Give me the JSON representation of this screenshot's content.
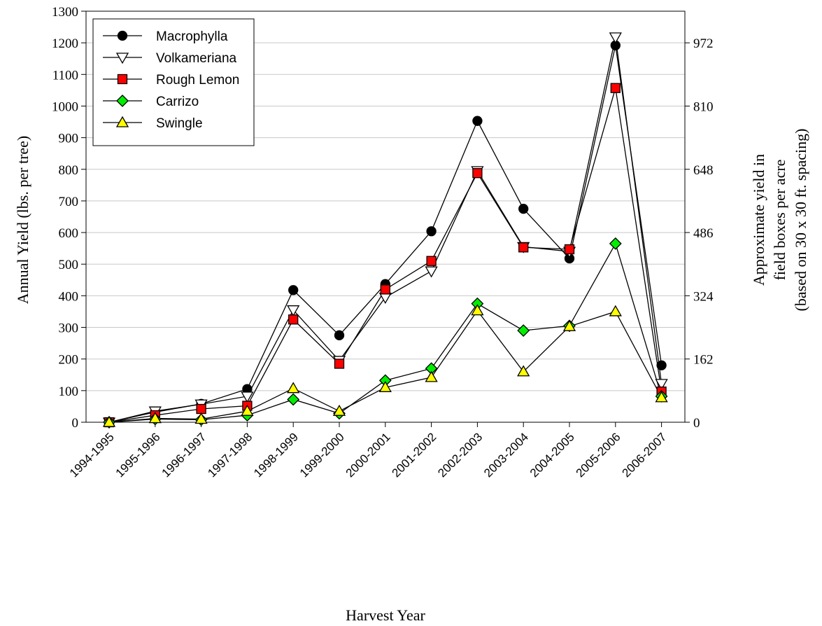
{
  "chart_data": {
    "type": "line",
    "title": "",
    "xlabel": "Harvest Year",
    "ylabel": "Annual Yield (lbs. per tree)",
    "y2label": [
      "Approximate yield in",
      "field boxes per acre",
      "(based on 30 x 30 ft. spacing)"
    ],
    "categories": [
      "1994-1995",
      "1995-1996",
      "1996-1997",
      "1997-1998",
      "1998-1999",
      "1999-2000",
      "2000-2001",
      "2001-2002",
      "2002-2003",
      "2003-2004",
      "2004-2005",
      "2005-2006",
      "2006-2007"
    ],
    "ylim": [
      0,
      1300
    ],
    "yticks": [
      0,
      100,
      200,
      300,
      400,
      500,
      600,
      700,
      800,
      900,
      1000,
      1100,
      1200,
      1300
    ],
    "y2ticks": [
      0,
      162,
      324,
      486,
      648,
      810,
      972
    ],
    "y2ticks_primary_values": [
      0,
      200,
      400,
      600,
      800,
      1000,
      1200
    ],
    "grid": "horizontal",
    "legend_position": "top-left",
    "series": [
      {
        "name": "Macrophylla",
        "marker": "circle",
        "color": "#000000",
        "values": [
          0,
          32,
          58,
          105,
          418,
          275,
          437,
          604,
          953,
          675,
          518,
          1192,
          180
        ]
      },
      {
        "name": "Volkameriana",
        "marker": "triangle-down",
        "color": "#ffffff",
        "values": [
          0,
          35,
          57,
          82,
          355,
          195,
          395,
          478,
          795,
          555,
          540,
          1218,
          122
        ]
      },
      {
        "name": "Rough Lemon",
        "marker": "square",
        "color": "#ff0000",
        "values": [
          0,
          22,
          42,
          52,
          325,
          185,
          420,
          510,
          788,
          553,
          547,
          1057,
          97
        ]
      },
      {
        "name": "Carrizo",
        "marker": "diamond",
        "color": "#00ee00",
        "values": [
          0,
          10,
          8,
          22,
          72,
          28,
          132,
          170,
          375,
          290,
          305,
          565,
          82
        ]
      },
      {
        "name": "Swingle",
        "marker": "triangle-up",
        "color": "#ffff00",
        "values": [
          0,
          12,
          10,
          35,
          107,
          35,
          110,
          142,
          353,
          160,
          303,
          350,
          78
        ]
      }
    ]
  }
}
